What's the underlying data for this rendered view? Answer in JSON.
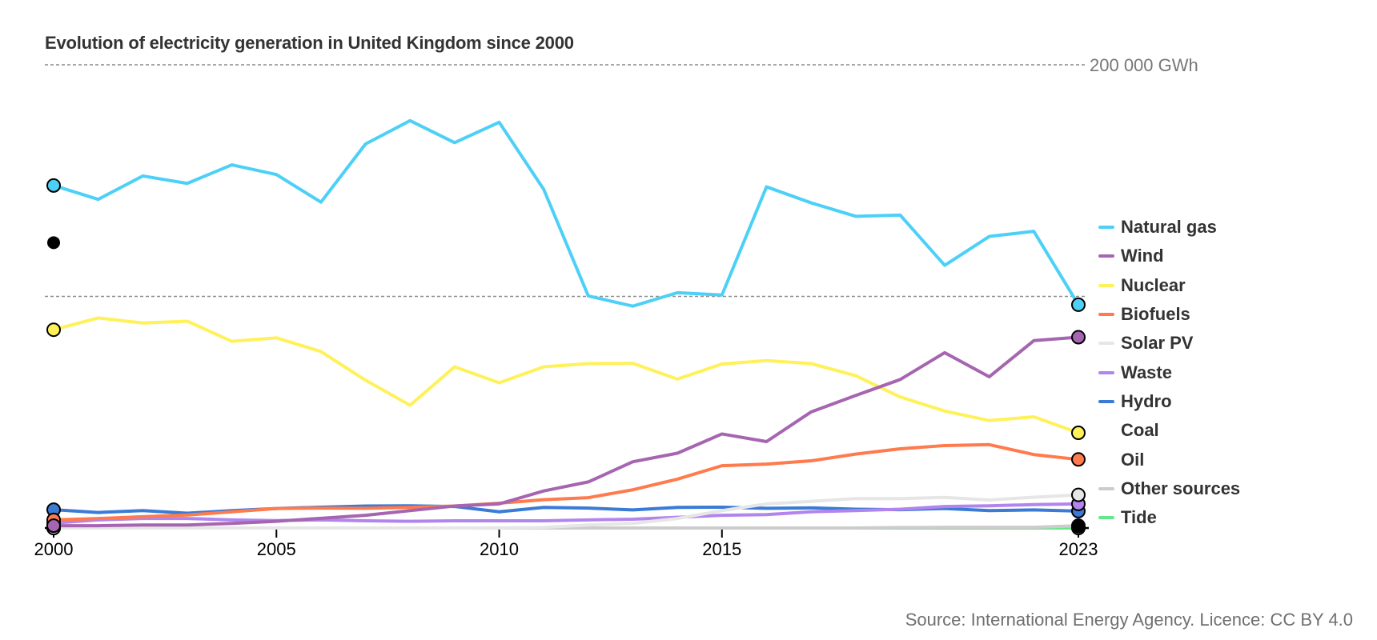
{
  "title": "Evolution of electricity generation in United Kingdom since 2000",
  "source": "Source: International Energy Agency. Licence: CC BY 4.0",
  "chart_data": {
    "type": "line",
    "title": "Evolution of electricity generation in United Kingdom since 2000",
    "xlabel": "",
    "ylabel": "GWh",
    "x": [
      2000,
      2001,
      2002,
      2003,
      2004,
      2005,
      2006,
      2007,
      2008,
      2009,
      2010,
      2011,
      2012,
      2013,
      2014,
      2015,
      2016,
      2017,
      2018,
      2019,
      2020,
      2021,
      2022,
      2023
    ],
    "x_tick_labels": [
      "2000",
      "2005",
      "2010",
      "2015",
      "2023"
    ],
    "x_ticks": [
      2000,
      2005,
      2010,
      2015,
      2023
    ],
    "ylim": [
      0,
      200000
    ],
    "y_gridlines": [
      100000,
      200000
    ],
    "y_gridline_label": "200 000 GWh",
    "grid": true,
    "legend_position": "right",
    "series": [
      {
        "name": "Natural gas",
        "color": "#4dd0f7",
        "values": [
          147900,
          141900,
          152000,
          148800,
          156800,
          152600,
          140700,
          165800,
          175900,
          166400,
          175200,
          146200,
          100200,
          95800,
          101600,
          100600,
          147300,
          140400,
          134600,
          135100,
          113400,
          125900,
          128100,
          96400
        ]
      },
      {
        "name": "Wind",
        "color": "#a665b0",
        "values": [
          1000,
          1000,
          1300,
          1300,
          2000,
          2900,
          4200,
          5500,
          7500,
          9500,
          10400,
          16000,
          19900,
          28600,
          32300,
          40600,
          37300,
          50100,
          57200,
          64100,
          75700,
          65300,
          80900,
          82400
        ]
      },
      {
        "name": "Nuclear",
        "color": "#fff159",
        "values": [
          85600,
          90700,
          88500,
          89300,
          80600,
          82100,
          76200,
          63800,
          53000,
          69600,
          62700,
          69600,
          71000,
          71100,
          64300,
          70800,
          72300,
          71000,
          65800,
          56600,
          50500,
          46400,
          48000,
          41100
        ]
      },
      {
        "name": "Biofuels",
        "color": "#ff7a4d",
        "values": [
          3500,
          4100,
          4900,
          5600,
          7000,
          8400,
          8600,
          8500,
          8900,
          9500,
          10700,
          12200,
          13100,
          16500,
          21100,
          26900,
          27600,
          29000,
          31900,
          34200,
          35600,
          36000,
          31700,
          29600
        ]
      },
      {
        "name": "Solar PV",
        "color": "#e6e6e6",
        "values": [
          0,
          0,
          0,
          0,
          0,
          0,
          0,
          0,
          0,
          20,
          40,
          250,
          1300,
          2000,
          4100,
          7500,
          10400,
          11500,
          12700,
          12700,
          13200,
          12100,
          13300,
          14300
        ]
      },
      {
        "name": "Waste",
        "color": "#b285ed",
        "values": [
          2100,
          3500,
          4100,
          4100,
          3500,
          3200,
          3500,
          3100,
          2900,
          3100,
          3100,
          3100,
          3500,
          3800,
          4600,
          5500,
          5800,
          7000,
          7500,
          8100,
          9300,
          9600,
          10100,
          10400
        ]
      },
      {
        "name": "Hydro",
        "color": "#3a7bd5",
        "values": [
          7900,
          6700,
          7500,
          6400,
          7500,
          8400,
          9000,
          9500,
          9600,
          9300,
          7000,
          8900,
          8600,
          7800,
          8900,
          9000,
          8500,
          8700,
          8100,
          7900,
          8400,
          7500,
          7800,
          7300
        ]
      },
      {
        "name": "Coal",
        "color": "#000000",
        "values": [
          123200,
          null,
          null,
          null,
          null,
          null,
          null,
          null,
          null,
          null,
          null,
          null,
          null,
          null,
          null,
          null,
          null,
          null,
          null,
          null,
          null,
          null,
          null,
          1000
        ]
      },
      {
        "name": "Oil",
        "color": "#000000",
        "values": [
          2300,
          null,
          null,
          null,
          null,
          null,
          null,
          null,
          null,
          null,
          null,
          null,
          null,
          null,
          null,
          null,
          null,
          null,
          null,
          null,
          null,
          null,
          null,
          500
        ]
      },
      {
        "name": "Other sources",
        "color": "#cccccc",
        "values": [
          0,
          0,
          0,
          0,
          0,
          0,
          0,
          0,
          0,
          0,
          0,
          0,
          0,
          0,
          0,
          0,
          0,
          0,
          0,
          200,
          300,
          300,
          300,
          1000
        ]
      },
      {
        "name": "Tide",
        "color": "#66e88a",
        "values": [
          0,
          0,
          0,
          0,
          0,
          0,
          0,
          0,
          0,
          0,
          0,
          0,
          10,
          10,
          10,
          10,
          10,
          10,
          10,
          10,
          10,
          10,
          10,
          10
        ]
      }
    ]
  }
}
